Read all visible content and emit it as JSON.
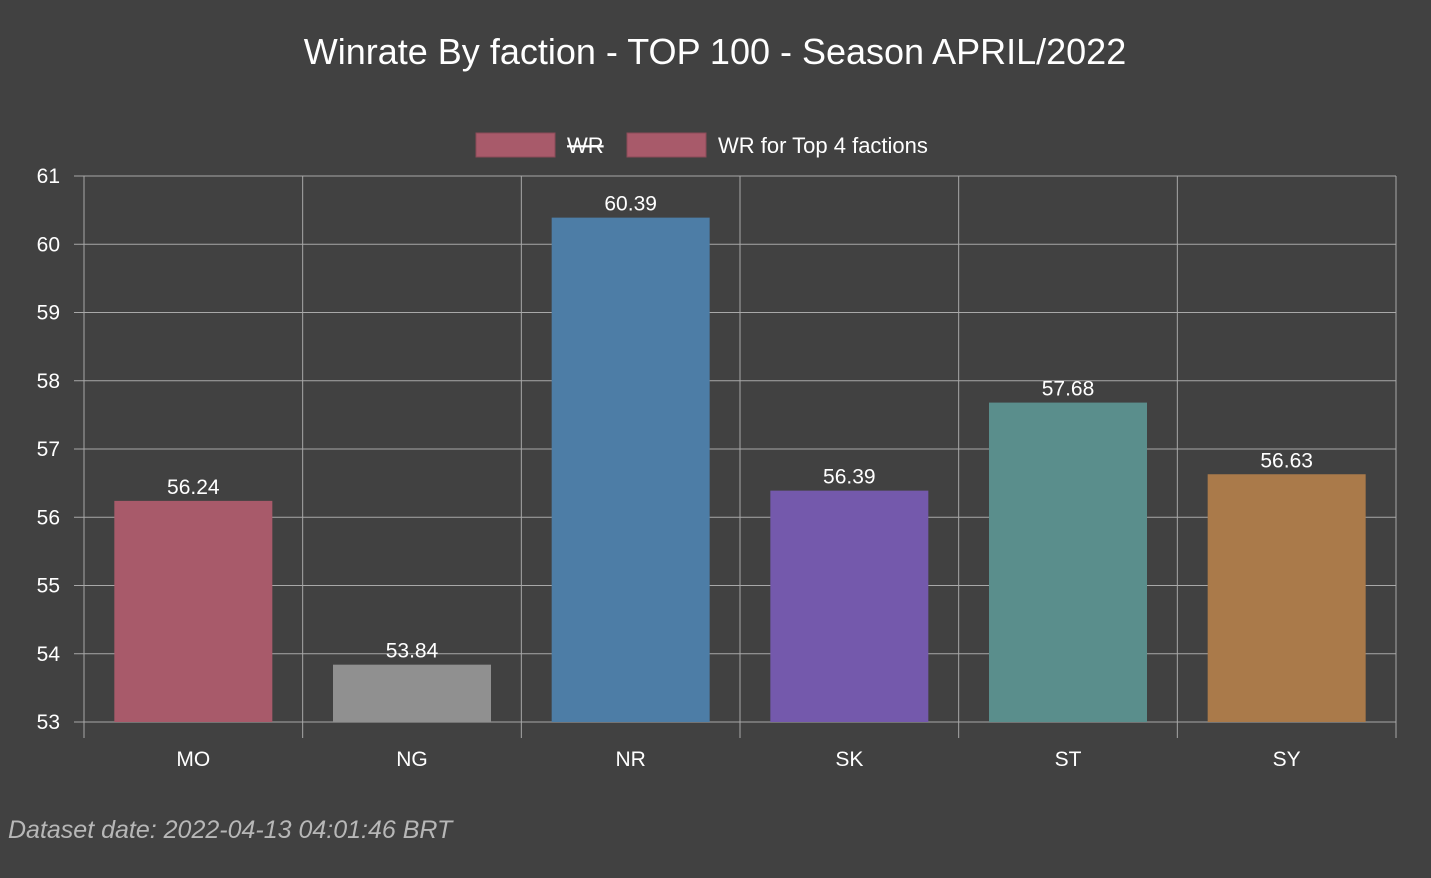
{
  "footer": {
    "dataset_date": "Dataset date: 2022-04-13 04:01:46 BRT"
  },
  "chart_data": {
    "type": "bar",
    "title": "Winrate By faction - TOP 100 - Season APRIL/2022",
    "xlabel": "",
    "ylabel": "",
    "categories": [
      "MO",
      "NG",
      "NR",
      "SK",
      "ST",
      "SY"
    ],
    "series": [
      {
        "name": "WR",
        "hidden": true,
        "values": [
          56.24,
          53.84,
          60.39,
          56.39,
          57.68,
          56.63
        ]
      },
      {
        "name": "WR for Top 4 factions",
        "hidden": false,
        "values": [
          56.24,
          53.84,
          60.39,
          56.39,
          57.68,
          56.63
        ]
      }
    ],
    "values": [
      56.24,
      53.84,
      60.39,
      56.39,
      57.68,
      56.63
    ],
    "value_labels": [
      "56.24",
      "53.84",
      "60.39",
      "56.39",
      "57.68",
      "56.63"
    ],
    "bar_colors": [
      "#a85a6a",
      "#909090",
      "#4d7da6",
      "#7459ac",
      "#5a8e8c",
      "#aa7a4a"
    ],
    "legend_colors": [
      "#a85a6a",
      "#a85a6a"
    ],
    "ylim": [
      53,
      61
    ],
    "yticks": [
      "53",
      "54",
      "55",
      "56",
      "57",
      "58",
      "59",
      "60",
      "61"
    ],
    "grid": true,
    "legend_position": "top-center"
  }
}
